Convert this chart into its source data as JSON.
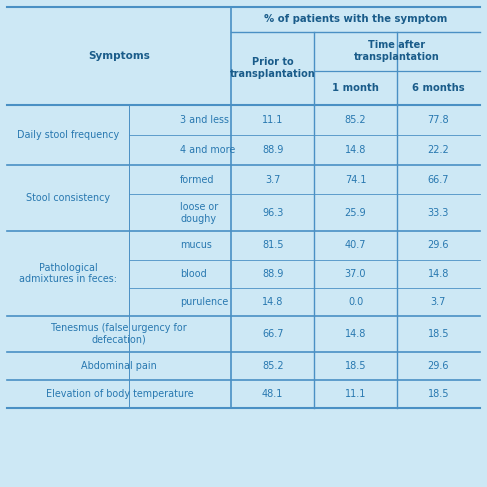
{
  "bg_color": "#cde8f5",
  "line_color": "#4a90c4",
  "text_color": "#2878b0",
  "bold_color": "#1a5c8a",
  "rows": [
    {
      "group": "Daily stool frequency",
      "sub": "3 and less",
      "prior": "11.1",
      "m1": "85.2",
      "m6": "77.8",
      "grp_start": true,
      "grp_end": false
    },
    {
      "group": "",
      "sub": "4 and more",
      "prior": "88.9",
      "m1": "14.8",
      "m6": "22.2",
      "grp_start": false,
      "grp_end": true
    },
    {
      "group": "Stool consistency",
      "sub": "formed",
      "prior": "3.7",
      "m1": "74.1",
      "m6": "66.7",
      "grp_start": true,
      "grp_end": false
    },
    {
      "group": "",
      "sub": "loose or\ndoughy",
      "prior": "96.3",
      "m1": "25.9",
      "m6": "33.3",
      "grp_start": false,
      "grp_end": true
    },
    {
      "group": "Pathological\nadmixtures in feces:",
      "sub": "mucus",
      "prior": "81.5",
      "m1": "40.7",
      "m6": "29.6",
      "grp_start": true,
      "grp_end": false
    },
    {
      "group": "",
      "sub": "blood",
      "prior": "88.9",
      "m1": "37.0",
      "m6": "14.8",
      "grp_start": false,
      "grp_end": false
    },
    {
      "group": "",
      "sub": "purulence",
      "prior": "14.8",
      "m1": "0.0",
      "m6": "3.7",
      "grp_start": false,
      "grp_end": true
    },
    {
      "group": "Tenesmus (false urgency for\ndefecation)",
      "sub": "",
      "prior": "66.7",
      "m1": "14.8",
      "m6": "18.5",
      "grp_start": true,
      "grp_end": true
    },
    {
      "group": "Abdominal pain",
      "sub": "",
      "prior": "85.2",
      "m1": "18.5",
      "m6": "29.6",
      "grp_start": true,
      "grp_end": true
    },
    {
      "group": "Elevation of body temperature",
      "sub": "",
      "prior": "48.1",
      "m1": "11.1",
      "m6": "18.5",
      "grp_start": true,
      "grp_end": true
    }
  ],
  "group_info": [
    {
      "r_start": 0,
      "r_end": 1,
      "label": "Daily stool frequency"
    },
    {
      "r_start": 2,
      "r_end": 3,
      "label": "Stool consistency"
    },
    {
      "r_start": 4,
      "r_end": 6,
      "label": "Pathological\nadmixtures in feces:"
    },
    {
      "r_start": 7,
      "r_end": 7,
      "label": "Tenesmus (false urgency for\ndefecation)"
    },
    {
      "r_start": 8,
      "r_end": 8,
      "label": "Abdominal pain"
    },
    {
      "r_start": 9,
      "r_end": 9,
      "label": "Elevation of body temperature"
    }
  ]
}
